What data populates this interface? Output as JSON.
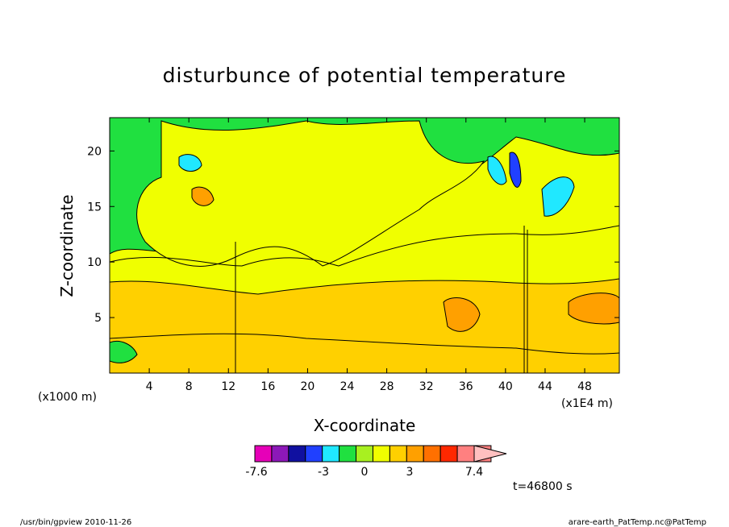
{
  "chart_data": {
    "type": "heatmap",
    "title": "disturbunce of potential temperature",
    "xlabel": "X-coordinate",
    "ylabel": "Z-coordinate",
    "x_unit": "(x1E4 m)",
    "y_unit": "(x1000 m)",
    "xlim": [
      0,
      51.5
    ],
    "ylim": [
      0,
      23
    ],
    "x_ticks": [
      4,
      8,
      12,
      16,
      20,
      24,
      28,
      32,
      36,
      40,
      44,
      48
    ],
    "y_ticks": [
      5,
      10,
      15,
      20
    ],
    "grid": false,
    "colorbar": {
      "tick_labels": [
        "-7.6",
        "-3",
        "0",
        "3",
        "7.4"
      ],
      "bins": [
        {
          "color": "#e600b8"
        },
        {
          "color": "#8c18b8"
        },
        {
          "color": "#1010a0"
        },
        {
          "color": "#2040ff"
        },
        {
          "color": "#20e8ff"
        },
        {
          "color": "#20e040"
        },
        {
          "color": "#a8f020"
        },
        {
          "color": "#f0ff00"
        },
        {
          "color": "#ffd000"
        },
        {
          "color": "#ffa000"
        },
        {
          "color": "#ff7000"
        },
        {
          "color": "#ff2800"
        },
        {
          "color": "#ff8080"
        },
        {
          "color": "#ffc0c0"
        }
      ]
    },
    "time_label": "t=46800 s"
  },
  "footer": {
    "left": "/usr/bin/gpview  2010-11-26",
    "right": "arare-earth_PatTemp.nc@PatTemp"
  }
}
